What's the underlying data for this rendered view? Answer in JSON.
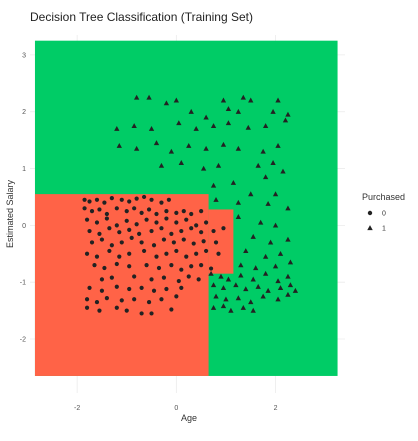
{
  "chart_data": {
    "type": "scatter",
    "title": "Decision Tree Classification (Training Set)",
    "xlabel": "Age",
    "ylabel": "Estimated Salary",
    "xlim": [
      -2.95,
      3.4
    ],
    "ylim": [
      -2.95,
      3.35
    ],
    "xticks": [
      -2,
      0,
      2
    ],
    "yticks": [
      -2,
      -1,
      0,
      1,
      2,
      3
    ],
    "grid": true,
    "colors": {
      "class_0_region": "#FF6347",
      "class_1_region": "#00CC66",
      "points": "#222222"
    },
    "regions": [
      {
        "class": "1",
        "x": [
          -2.85,
          3.25
        ],
        "y": [
          -2.65,
          3.25
        ]
      },
      {
        "class": "0",
        "x": [
          -2.85,
          0.65
        ],
        "y": [
          -2.65,
          0.55
        ]
      },
      {
        "class": "0",
        "x": [
          0.65,
          1.15
        ],
        "y": [
          -0.85,
          0.28
        ]
      }
    ],
    "legend": {
      "title": "Purchased",
      "position": "right",
      "entries": [
        {
          "label": "0",
          "shape": "circle"
        },
        {
          "label": "1",
          "shape": "triangle"
        }
      ]
    },
    "series": [
      {
        "class": "0",
        "shape": "circle",
        "points": [
          [
            -1.85,
            0.45
          ],
          [
            -1.75,
            0.42
          ],
          [
            -1.6,
            0.45
          ],
          [
            -1.45,
            0.4
          ],
          [
            -1.3,
            0.48
          ],
          [
            -1.1,
            0.45
          ],
          [
            -0.95,
            0.42
          ],
          [
            -0.8,
            0.47
          ],
          [
            -0.65,
            0.5
          ],
          [
            -0.5,
            0.45
          ],
          [
            -0.3,
            0.4
          ],
          [
            -0.15,
            0.45
          ],
          [
            -1.85,
            0.3
          ],
          [
            -1.7,
            0.25
          ],
          [
            -1.55,
            0.28
          ],
          [
            -1.4,
            0.2
          ],
          [
            -1.2,
            0.3
          ],
          [
            -1.0,
            0.25
          ],
          [
            -0.85,
            0.3
          ],
          [
            -0.7,
            0.22
          ],
          [
            -0.55,
            0.28
          ],
          [
            -0.4,
            0.2
          ],
          [
            -0.2,
            0.25
          ],
          [
            0.0,
            0.22
          ],
          [
            0.15,
            0.25
          ],
          [
            0.3,
            0.2
          ],
          [
            0.5,
            0.25
          ],
          [
            -1.8,
            0.1
          ],
          [
            -1.6,
            0.05
          ],
          [
            -1.4,
            0.12
          ],
          [
            -1.2,
            0.0
          ],
          [
            -1.0,
            0.08
          ],
          [
            -0.8,
            0.02
          ],
          [
            -0.6,
            0.1
          ],
          [
            -0.4,
            0.05
          ],
          [
            -0.2,
            0.12
          ],
          [
            0.0,
            0.05
          ],
          [
            0.2,
            0.1
          ],
          [
            0.4,
            0.0
          ],
          [
            0.6,
            0.05
          ],
          [
            -1.75,
            -0.1
          ],
          [
            -1.55,
            -0.15
          ],
          [
            -1.35,
            -0.05
          ],
          [
            -1.15,
            -0.12
          ],
          [
            -0.95,
            -0.08
          ],
          [
            -0.75,
            -0.15
          ],
          [
            -0.5,
            -0.1
          ],
          [
            -0.3,
            -0.05
          ],
          [
            -0.1,
            -0.15
          ],
          [
            0.1,
            -0.1
          ],
          [
            0.3,
            -0.05
          ],
          [
            0.5,
            -0.12
          ],
          [
            0.75,
            -0.1
          ],
          [
            0.95,
            -0.05
          ],
          [
            -1.7,
            -0.3
          ],
          [
            -1.5,
            -0.25
          ],
          [
            -1.3,
            -0.35
          ],
          [
            -1.1,
            -0.3
          ],
          [
            -0.9,
            -0.22
          ],
          [
            -0.7,
            -0.3
          ],
          [
            -0.45,
            -0.35
          ],
          [
            -0.25,
            -0.25
          ],
          [
            -0.05,
            -0.3
          ],
          [
            0.15,
            -0.25
          ],
          [
            0.35,
            -0.32
          ],
          [
            0.55,
            -0.28
          ],
          [
            0.8,
            -0.3
          ],
          [
            -1.8,
            -0.5
          ],
          [
            -1.6,
            -0.55
          ],
          [
            -1.35,
            -0.45
          ],
          [
            -1.15,
            -0.55
          ],
          [
            -0.95,
            -0.5
          ],
          [
            -0.65,
            -0.45
          ],
          [
            -0.4,
            -0.55
          ],
          [
            -0.2,
            -0.5
          ],
          [
            0.0,
            -0.45
          ],
          [
            0.2,
            -0.55
          ],
          [
            0.4,
            -0.5
          ],
          [
            0.6,
            -0.45
          ],
          [
            0.85,
            -0.5
          ],
          [
            -1.65,
            -0.7
          ],
          [
            -1.45,
            -0.75
          ],
          [
            -1.2,
            -0.68
          ],
          [
            -0.95,
            -0.72
          ],
          [
            -0.6,
            -0.7
          ],
          [
            -0.35,
            -0.75
          ],
          [
            -0.1,
            -0.7
          ],
          [
            0.1,
            -0.78
          ],
          [
            0.3,
            -0.72
          ],
          [
            0.5,
            -0.7
          ],
          [
            0.7,
            -0.76
          ],
          [
            -1.5,
            -0.95
          ],
          [
            -1.3,
            -0.92
          ],
          [
            -0.85,
            -0.9
          ],
          [
            -0.5,
            -0.95
          ],
          [
            -0.25,
            -0.92
          ],
          [
            0.05,
            -0.98
          ],
          [
            0.25,
            -0.9
          ],
          [
            0.45,
            -0.95
          ],
          [
            -1.75,
            -1.1
          ],
          [
            -1.5,
            -1.15
          ],
          [
            -1.2,
            -1.08
          ],
          [
            -0.95,
            -1.12
          ],
          [
            -0.7,
            -1.1
          ],
          [
            -0.45,
            -1.15
          ],
          [
            -0.2,
            -1.12
          ],
          [
            0.1,
            -1.1
          ],
          [
            -1.8,
            -1.3
          ],
          [
            -1.6,
            -1.35
          ],
          [
            -1.4,
            -1.28
          ],
          [
            -1.1,
            -1.32
          ],
          [
            -0.85,
            -1.3
          ],
          [
            -0.55,
            -1.35
          ],
          [
            -0.3,
            -1.3
          ],
          [
            0.0,
            -1.25
          ],
          [
            -1.8,
            -1.45
          ],
          [
            -1.55,
            -1.5
          ],
          [
            -1.2,
            -1.45
          ],
          [
            -1.0,
            -1.5
          ],
          [
            -0.7,
            -1.55
          ],
          [
            -0.5,
            -1.55
          ],
          [
            -0.1,
            -1.48
          ]
        ]
      },
      {
        "class": "1",
        "shape": "triangle",
        "points": [
          [
            -0.8,
            2.25
          ],
          [
            -0.55,
            2.25
          ],
          [
            -0.2,
            2.15
          ],
          [
            0.0,
            2.2
          ],
          [
            0.3,
            2.0
          ],
          [
            0.6,
            1.9
          ],
          [
            0.95,
            2.2
          ],
          [
            1.35,
            2.25
          ],
          [
            1.5,
            2.2
          ],
          [
            1.05,
            2.05
          ],
          [
            1.25,
            2.0
          ],
          [
            2.05,
            2.2
          ],
          [
            1.95,
            2.0
          ],
          [
            2.25,
            1.95
          ],
          [
            -1.2,
            1.7
          ],
          [
            -0.85,
            1.75
          ],
          [
            -0.5,
            1.7
          ],
          [
            0.05,
            1.8
          ],
          [
            0.4,
            1.7
          ],
          [
            0.75,
            1.75
          ],
          [
            1.05,
            1.8
          ],
          [
            1.45,
            1.72
          ],
          [
            1.8,
            1.75
          ],
          [
            2.2,
            1.85
          ],
          [
            -1.15,
            1.4
          ],
          [
            -0.8,
            1.35
          ],
          [
            -0.4,
            1.45
          ],
          [
            -0.1,
            1.3
          ],
          [
            0.25,
            1.4
          ],
          [
            0.6,
            1.35
          ],
          [
            0.95,
            1.42
          ],
          [
            1.25,
            1.35
          ],
          [
            1.75,
            1.3
          ],
          [
            2.05,
            1.4
          ],
          [
            -0.3,
            1.05
          ],
          [
            0.1,
            1.1
          ],
          [
            0.55,
            1.0
          ],
          [
            0.85,
            1.05
          ],
          [
            1.65,
            1.05
          ],
          [
            1.95,
            1.1
          ],
          [
            2.15,
            0.95
          ],
          [
            1.8,
            0.85
          ],
          [
            1.15,
            0.75
          ],
          [
            0.75,
            0.7
          ],
          [
            1.5,
            0.55
          ],
          [
            2.0,
            0.55
          ],
          [
            0.8,
            0.45
          ],
          [
            1.25,
            0.4
          ],
          [
            1.85,
            0.38
          ],
          [
            2.25,
            0.3
          ],
          [
            1.25,
            0.15
          ],
          [
            1.7,
            0.05
          ],
          [
            2.0,
            0.0
          ],
          [
            1.55,
            -0.2
          ],
          [
            1.9,
            -0.3
          ],
          [
            2.25,
            -0.25
          ],
          [
            1.4,
            -0.45
          ],
          [
            1.8,
            -0.55
          ],
          [
            2.1,
            -0.5
          ],
          [
            1.3,
            -0.7
          ],
          [
            1.6,
            -0.75
          ],
          [
            2.0,
            -0.72
          ],
          [
            2.3,
            -0.65
          ],
          [
            0.7,
            -0.85
          ],
          [
            0.9,
            -0.9
          ],
          [
            1.05,
            -0.95
          ],
          [
            1.3,
            -0.88
          ],
          [
            1.55,
            -0.95
          ],
          [
            1.8,
            -0.85
          ],
          [
            2.05,
            -0.98
          ],
          [
            2.25,
            -0.9
          ],
          [
            0.75,
            -1.05
          ],
          [
            0.95,
            -1.1
          ],
          [
            1.2,
            -1.05
          ],
          [
            1.4,
            -1.12
          ],
          [
            1.65,
            -1.08
          ],
          [
            1.85,
            -1.15
          ],
          [
            2.1,
            -1.1
          ],
          [
            2.3,
            -1.05
          ],
          [
            2.4,
            -1.15
          ],
          [
            0.8,
            -1.25
          ],
          [
            1.0,
            -1.3
          ],
          [
            1.25,
            -1.28
          ],
          [
            1.5,
            -1.35
          ],
          [
            1.75,
            -1.25
          ],
          [
            2.05,
            -1.3
          ],
          [
            2.25,
            -1.22
          ],
          [
            0.75,
            -1.45
          ],
          [
            0.95,
            -1.42
          ],
          [
            1.1,
            -1.5
          ],
          [
            1.35,
            -1.45
          ],
          [
            1.55,
            -1.5
          ]
        ]
      }
    ]
  }
}
